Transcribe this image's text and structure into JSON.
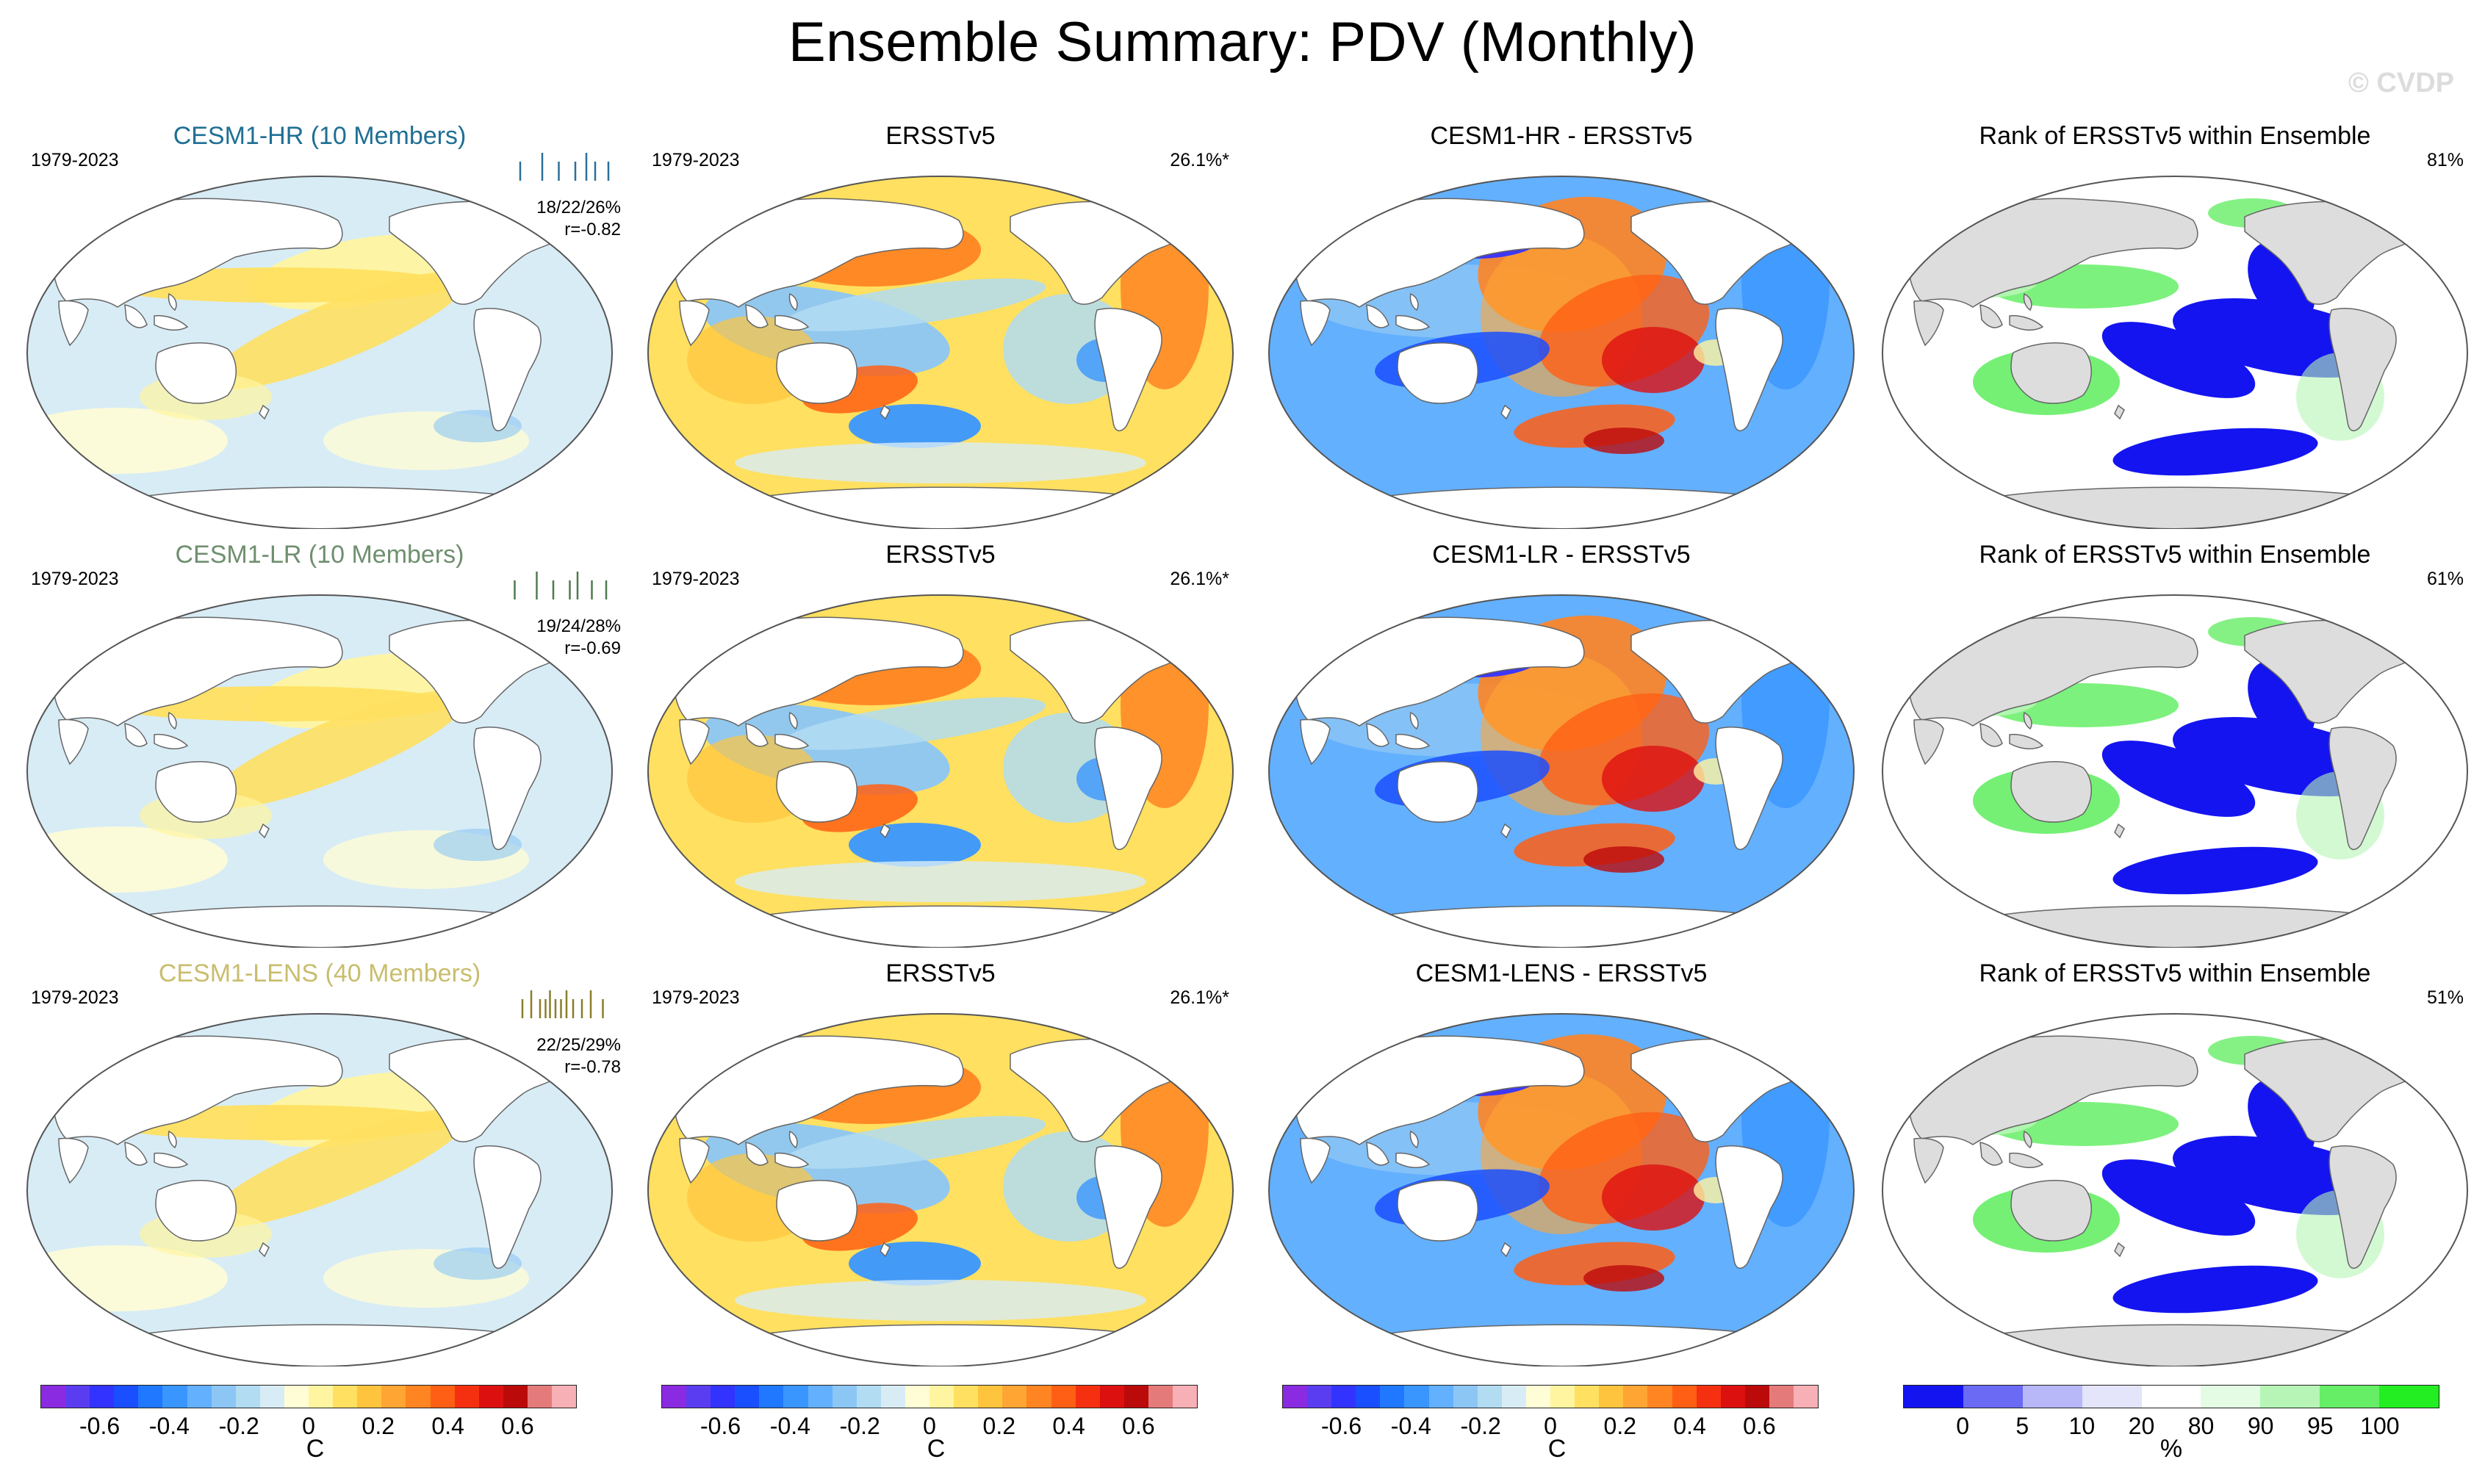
{
  "title": "Ensemble Summary: PDV (Monthly)",
  "watermark": "© CVDP",
  "rows": [
    {
      "model": {
        "label": "CESM1-HR (10 Members)",
        "color": "#1f6f94",
        "period": "1979-2023",
        "stats": "18/22/26%",
        "corr": "r=-0.82",
        "spread_color": "#2a6f9a",
        "spread": [
          0.1,
          0.3,
          0.45,
          0.6,
          0.7,
          0.78,
          0.9
        ]
      },
      "obs": {
        "label": "ERSSTv5",
        "period": "1979-2023",
        "pct": "26.1%*"
      },
      "diff": {
        "label": "CESM1-HR - ERSSTv5"
      },
      "rank": {
        "label": "Rank of ERSSTv5 within Ensemble",
        "pct": "81%"
      }
    },
    {
      "model": {
        "label": "CESM1-LR (10 Members)",
        "color": "#6f8f6f",
        "period": "1979-2023",
        "stats": "19/24/28%",
        "corr": "r=-0.69",
        "spread_color": "#4f7a4f",
        "spread": [
          0.05,
          0.25,
          0.4,
          0.55,
          0.62,
          0.75,
          0.88
        ]
      },
      "obs": {
        "label": "ERSSTv5",
        "period": "1979-2023",
        "pct": "26.1%*"
      },
      "diff": {
        "label": "CESM1-LR - ERSSTv5"
      },
      "rank": {
        "label": "Rank of ERSSTv5 within Ensemble",
        "pct": "61%"
      }
    },
    {
      "model": {
        "label": "CESM1-LENS (40 Members)",
        "color": "#c9bd6e",
        "period": "1979-2023",
        "stats": "22/25/29%",
        "corr": "r=-0.78",
        "spread_color": "#8a7d2a",
        "spread": [
          0.12,
          0.2,
          0.28,
          0.33,
          0.37,
          0.42,
          0.47,
          0.52,
          0.58,
          0.66,
          0.74,
          0.85
        ]
      },
      "obs": {
        "label": "ERSSTv5",
        "period": "1979-2023",
        "pct": "26.1%*"
      },
      "diff": {
        "label": "CESM1-LENS - ERSSTv5"
      },
      "rank": {
        "label": "Rank of ERSSTv5 within Ensemble",
        "pct": "51%"
      }
    }
  ],
  "colorbars": {
    "sst": {
      "unit": "C",
      "colors": [
        "#8a2be2",
        "#5a3df0",
        "#3333ff",
        "#1a4fff",
        "#1f78ff",
        "#3a96ff",
        "#63b0ff",
        "#8cc6f5",
        "#b2dcf2",
        "#d8ecf6",
        "#fffdd6",
        "#fff5a0",
        "#ffe060",
        "#ffc43d",
        "#ffa533",
        "#ff8422",
        "#ff5f14",
        "#f53010",
        "#dd1010",
        "#bb0a0a",
        "#e47a7a",
        "#f7b0b5"
      ],
      "ticks": [
        "-0.6",
        "-0.4",
        "-0.2",
        "0",
        "0.2",
        "0.4",
        "0.6"
      ]
    },
    "rank": {
      "unit": "%",
      "colors": [
        "#1414f0",
        "#6a6af5",
        "#b8b8f8",
        "#e4e4fb",
        "#ffffff",
        "#e4fbe4",
        "#b6f5b6",
        "#66ee66",
        "#22ee22"
      ],
      "ticks": [
        "0",
        "5",
        "10",
        "20",
        "80",
        "90",
        "95",
        "100"
      ]
    }
  }
}
